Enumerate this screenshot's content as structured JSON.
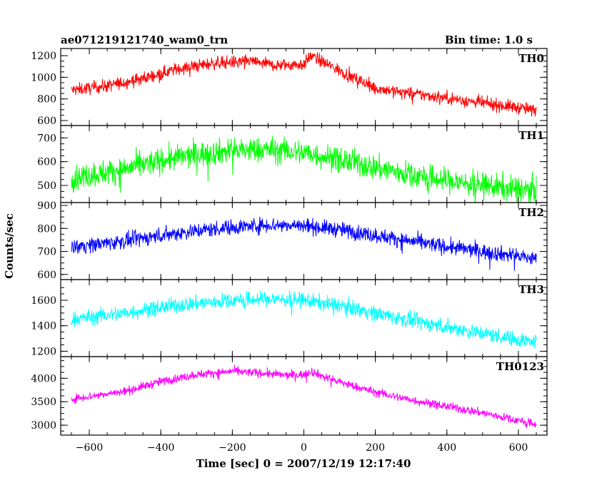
{
  "header": {
    "left": "ae071219121740_wam0_trn",
    "right": "Bin time: 1.0 s"
  },
  "chart_data": {
    "type": "line",
    "title": "ae071219121740_wam0_trn",
    "subtitle": "Bin time: 1.0 s",
    "xlabel": "Time [sec] 0 = 2007/12/19 12:17:40",
    "ylabel": "Counts/sec",
    "xlim": [
      -680,
      680
    ],
    "x_ticks": [
      -600,
      -400,
      -200,
      0,
      200,
      400,
      600
    ],
    "x_tick_labels": [
      "−600",
      "−400",
      "−200",
      "0",
      "200",
      "400",
      "600"
    ],
    "series": [
      {
        "name": "TH0",
        "color": "#ff0000",
        "ylim": [
          580,
          1240
        ],
        "y_ticks": [
          600,
          800,
          1000,
          1200
        ],
        "x": [
          -650,
          -550,
          -450,
          -350,
          -250,
          -150,
          -80,
          0,
          20,
          60,
          100,
          200,
          300,
          400,
          500,
          600,
          650
        ],
        "y": [
          880,
          920,
          990,
          1080,
          1130,
          1150,
          1110,
          1120,
          1200,
          1130,
          1060,
          900,
          850,
          810,
          760,
          720,
          690
        ]
      },
      {
        "name": "TH1",
        "color": "#00ff00",
        "ylim": [
          440,
          740
        ],
        "y_ticks": [
          500,
          600,
          700
        ],
        "x": [
          -650,
          -500,
          -400,
          -300,
          -200,
          -100,
          0,
          100,
          200,
          300,
          400,
          500,
          600,
          650
        ],
        "y": [
          530,
          570,
          605,
          630,
          648,
          650,
          638,
          610,
          575,
          545,
          520,
          500,
          485,
          480
        ]
      },
      {
        "name": "TH2",
        "color": "#0000ff",
        "ylim": [
          590,
          900
        ],
        "y_ticks": [
          600,
          700,
          800,
          900
        ],
        "x": [
          -650,
          -500,
          -400,
          -300,
          -200,
          -100,
          0,
          100,
          200,
          300,
          400,
          500,
          600,
          650
        ],
        "y": [
          720,
          745,
          770,
          790,
          805,
          815,
          812,
          795,
          770,
          745,
          720,
          700,
          680,
          665
        ]
      },
      {
        "name": "TH3",
        "color": "#00ffff",
        "ylim": [
          1180,
          1740
        ],
        "y_ticks": [
          1200,
          1400,
          1600
        ],
        "x": [
          -650,
          -500,
          -400,
          -300,
          -200,
          -100,
          0,
          100,
          200,
          300,
          400,
          500,
          600,
          650
        ],
        "y": [
          1450,
          1500,
          1545,
          1575,
          1600,
          1610,
          1600,
          1560,
          1500,
          1440,
          1390,
          1340,
          1290,
          1270
        ]
      },
      {
        "name": "TH0123",
        "color": "#ff00ff",
        "ylim": [
          2850,
          4400
        ],
        "y_ticks": [
          3000,
          3500,
          4000
        ],
        "x": [
          -650,
          -500,
          -400,
          -300,
          -200,
          -100,
          -50,
          0,
          20,
          60,
          100,
          200,
          300,
          400,
          500,
          600,
          650
        ],
        "y": [
          3560,
          3720,
          3930,
          4080,
          4150,
          4100,
          4060,
          4080,
          4150,
          4020,
          3920,
          3700,
          3540,
          3400,
          3260,
          3100,
          3010
        ]
      }
    ]
  }
}
